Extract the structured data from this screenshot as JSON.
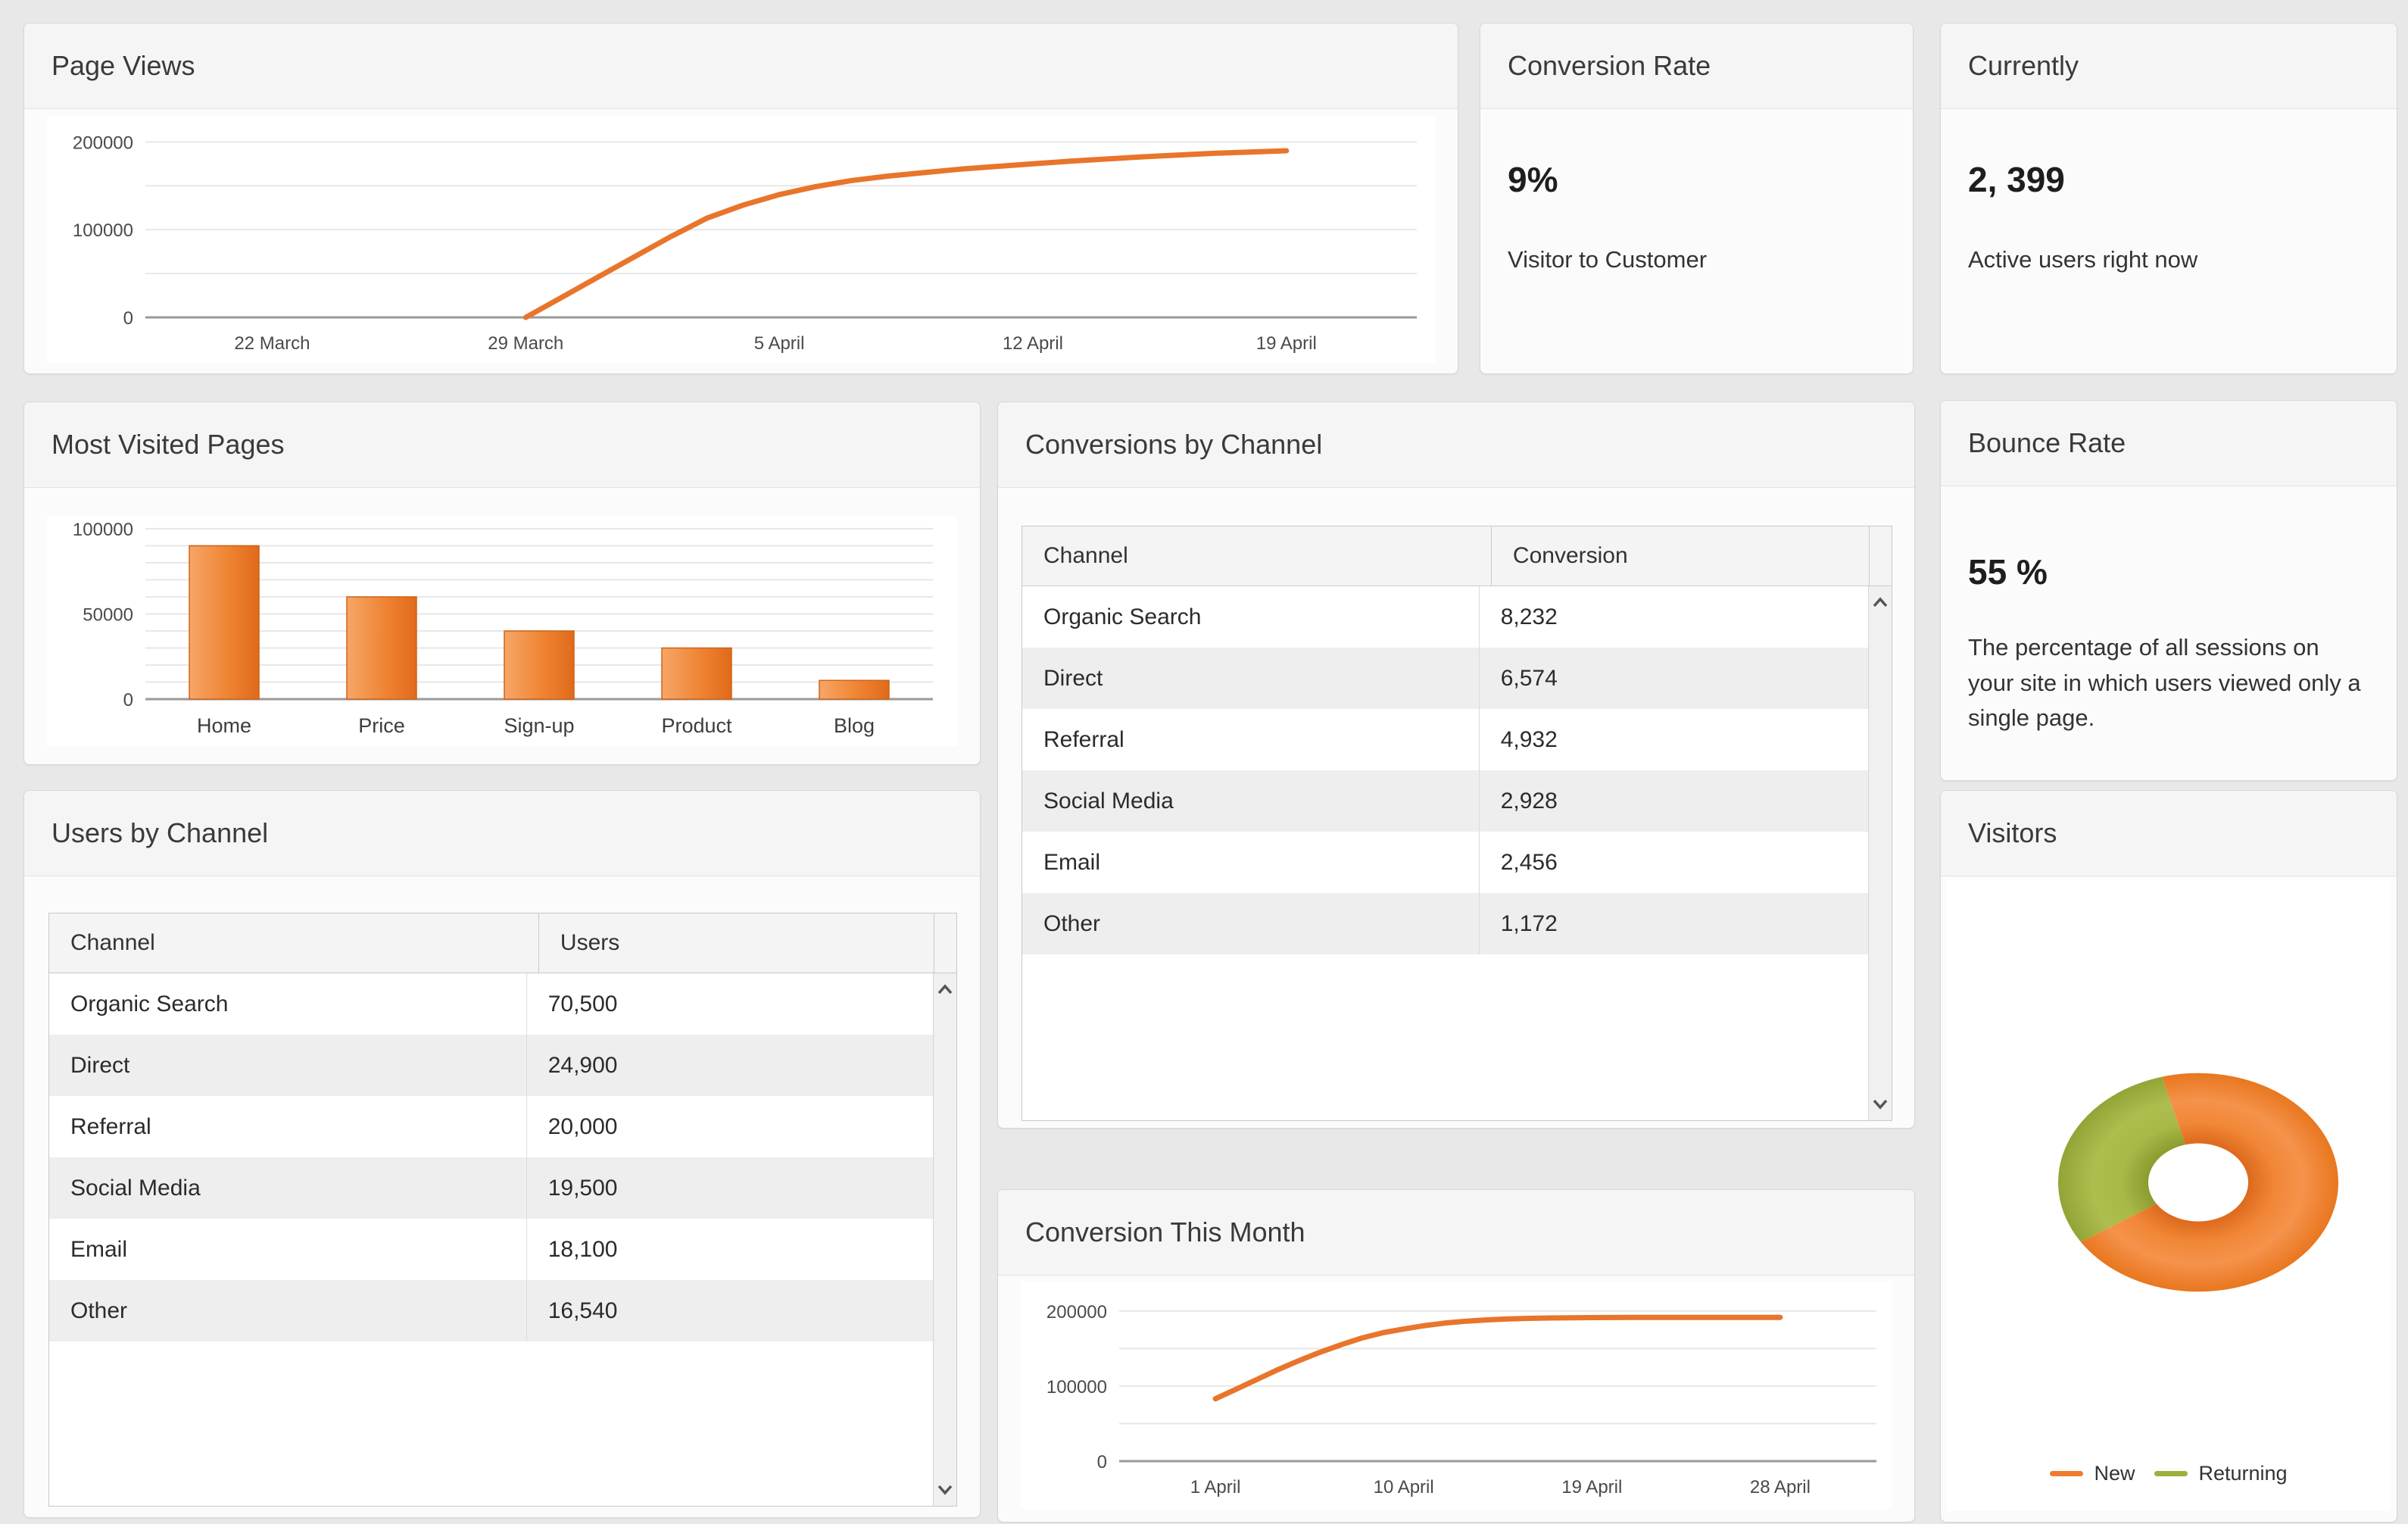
{
  "theme": {
    "page_bg": "#e8e8e8",
    "panel_bg": "#fbfbfb",
    "panel_border": "#d7d7d7",
    "header_bg": "#f5f5f5",
    "title_color": "#3a3a3a",
    "accent_orange": "#e8752b",
    "accent_green": "#9fae3c",
    "grid_color": "#e7e7e7",
    "axis_line_color": "#9a9a9a",
    "stripe_bg": "#eeeeee"
  },
  "panels": {
    "page_views": {
      "title": "Page Views"
    },
    "conversion_rate": {
      "title": "Conversion Rate",
      "value": "9%",
      "caption": "Visitor to Customer"
    },
    "currently": {
      "title": "Currently",
      "value": "2, 399",
      "caption": "Active users right now"
    },
    "most_visited": {
      "title": "Most Visited Pages"
    },
    "conversions_by_channel": {
      "title": "Conversions by Channel",
      "columns": [
        "Channel",
        "Conversion"
      ],
      "rows": [
        [
          "Organic Search",
          "8,232"
        ],
        [
          "Direct",
          "6,574"
        ],
        [
          "Referral",
          "4,932"
        ],
        [
          "Social Media",
          "2,928"
        ],
        [
          "Email",
          "2,456"
        ],
        [
          "Other",
          "1,172"
        ]
      ]
    },
    "bounce_rate": {
      "title": "Bounce Rate",
      "value": "55 %",
      "caption": "The percentage of all sessions on your site in which users viewed only a single page."
    },
    "users_by_channel": {
      "title": "Users by Channel",
      "columns": [
        "Channel",
        "Users"
      ],
      "rows": [
        [
          "Organic Search",
          "70,500"
        ],
        [
          "Direct",
          "24,900"
        ],
        [
          "Referral",
          "20,000"
        ],
        [
          "Social Media",
          "19,500"
        ],
        [
          "Email",
          "18,100"
        ],
        [
          "Other",
          "16,540"
        ]
      ]
    },
    "conversion_month": {
      "title": "Conversion This Month"
    },
    "visitors": {
      "title": "Visitors"
    }
  },
  "chart_data": [
    {
      "id": "page_views",
      "type": "line",
      "title": "Page Views",
      "color": "#e8752b",
      "x_domain": [
        -3.5,
        31.6
      ],
      "x_ticks": [
        {
          "pos": 0,
          "label": "22 March"
        },
        {
          "pos": 7,
          "label": "29 March"
        },
        {
          "pos": 14,
          "label": "5 April"
        },
        {
          "pos": 21,
          "label": "12 April"
        },
        {
          "pos": 28,
          "label": "19 April"
        }
      ],
      "ylim": [
        0,
        215000
      ],
      "y_gridlines": [
        50000,
        100000,
        150000,
        200000
      ],
      "y_labels": [
        0,
        100000,
        200000
      ],
      "points": [
        [
          7,
          0
        ],
        [
          8,
          23000
        ],
        [
          9,
          46000
        ],
        [
          10,
          69000
        ],
        [
          11,
          92000
        ],
        [
          12,
          113000
        ],
        [
          13,
          128000
        ],
        [
          14,
          140000
        ],
        [
          15,
          149000
        ],
        [
          16,
          156000
        ],
        [
          17,
          161000
        ],
        [
          18,
          165000
        ],
        [
          19,
          169000
        ],
        [
          20,
          172000
        ],
        [
          21,
          175000
        ],
        [
          22,
          178000
        ],
        [
          23,
          180500
        ],
        [
          24,
          183000
        ],
        [
          25,
          185000
        ],
        [
          26,
          187000
        ],
        [
          27,
          188500
        ],
        [
          28,
          190000
        ]
      ]
    },
    {
      "id": "most_visited",
      "type": "bar",
      "title": "Most Visited Pages",
      "categories": [
        "Home",
        "Price",
        "Sign-up",
        "Product",
        "Blog"
      ],
      "values": [
        90000,
        60000,
        40000,
        30000,
        11000
      ],
      "ylim": [
        0,
        100000
      ],
      "grid_step": 10000,
      "y_labels": [
        0,
        50000,
        100000
      ],
      "bar_gradient": [
        "#f6a668",
        "#ef8433",
        "#e06a1a"
      ],
      "bar_stroke": "#cf6418"
    },
    {
      "id": "conversion_month",
      "type": "line",
      "title": "Conversion This Month",
      "color": "#e8752b",
      "x_domain": [
        -3.6,
        32.6
      ],
      "x_ticks": [
        {
          "pos": 1,
          "label": "1 April"
        },
        {
          "pos": 10,
          "label": "10 April"
        },
        {
          "pos": 19,
          "label": "19 April"
        },
        {
          "pos": 28,
          "label": "28 April"
        }
      ],
      "ylim": [
        0,
        225000
      ],
      "y_gridlines": [
        50000,
        100000,
        150000,
        200000
      ],
      "y_labels": [
        0,
        100000,
        200000
      ],
      "points": [
        [
          1,
          83000
        ],
        [
          2,
          96000
        ],
        [
          3,
          109000
        ],
        [
          4,
          122000
        ],
        [
          5,
          134000
        ],
        [
          6,
          145000
        ],
        [
          7,
          155000
        ],
        [
          8,
          164000
        ],
        [
          9,
          171000
        ],
        [
          10,
          176000
        ],
        [
          11,
          180500
        ],
        [
          12,
          184000
        ],
        [
          13,
          186500
        ],
        [
          14,
          188200
        ],
        [
          15,
          189400
        ],
        [
          16,
          190200
        ],
        [
          17,
          190700
        ],
        [
          18,
          191000
        ],
        [
          19,
          191200
        ],
        [
          21,
          191400
        ],
        [
          24,
          191500
        ],
        [
          28,
          191500
        ]
      ]
    },
    {
      "id": "visitors",
      "type": "donut",
      "title": "Visitors",
      "start_angle": -105,
      "legend_position": "bottom",
      "series": [
        {
          "name": "New",
          "value": 70,
          "color": "#ee7c2d",
          "shades": [
            "#dd6a1e",
            "#f18737",
            "#f5924b",
            "#e8771f"
          ]
        },
        {
          "name": "Returning",
          "value": 30,
          "color": "#9fae3c",
          "shades": [
            "#8c9c2f",
            "#a9b848",
            "#aebd4e",
            "#93a436"
          ]
        }
      ]
    }
  ]
}
